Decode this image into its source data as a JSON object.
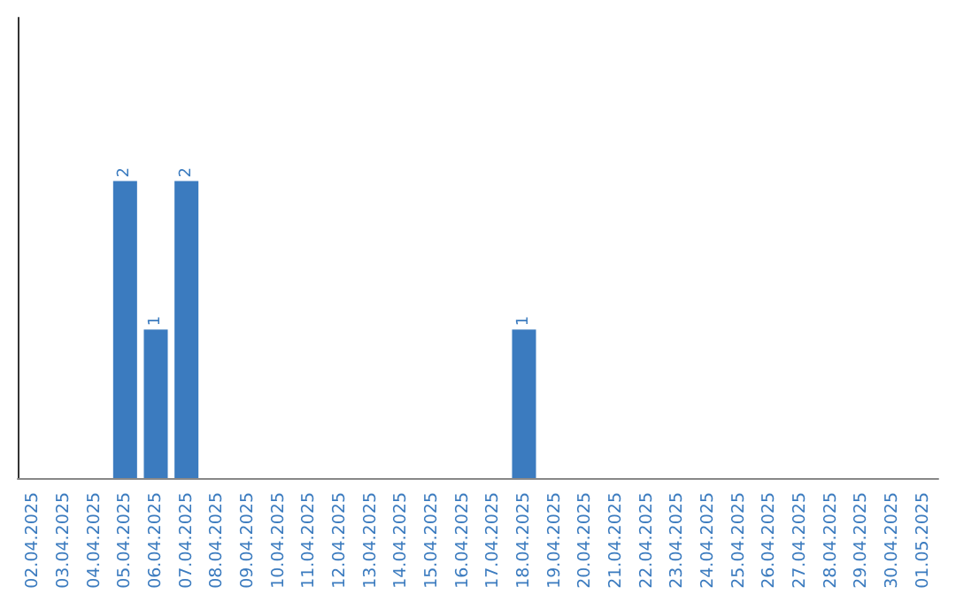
{
  "chart_data": {
    "type": "bar",
    "categories": [
      "02.04.2025",
      "03.04.2025",
      "04.04.2025",
      "05.04.2025",
      "06.04.2025",
      "07.04.2025",
      "08.04.2025",
      "09.04.2025",
      "10.04.2025",
      "11.04.2025",
      "12.04.2025",
      "13.04.2025",
      "14.04.2025",
      "15.04.2025",
      "16.04.2025",
      "17.04.2025",
      "18.04.2025",
      "19.04.2025",
      "20.04.2025",
      "21.04.2025",
      "22.04.2025",
      "23.04.2025",
      "24.04.2025",
      "25.04.2025",
      "26.04.2025",
      "27.04.2025",
      "28.04.2025",
      "29.04.2025",
      "30.04.2025",
      "01.05.2025"
    ],
    "values": [
      0,
      0,
      0,
      2,
      1,
      2,
      0,
      0,
      0,
      0,
      0,
      0,
      0,
      0,
      0,
      0,
      1,
      0,
      0,
      0,
      0,
      0,
      0,
      0,
      0,
      0,
      0,
      0,
      0,
      0
    ],
    "value_labels": [
      null,
      null,
      null,
      "2",
      "1",
      "2",
      null,
      null,
      null,
      null,
      null,
      null,
      null,
      null,
      null,
      null,
      "1",
      null,
      null,
      null,
      null,
      null,
      null,
      null,
      null,
      null,
      null,
      null,
      null,
      null
    ],
    "color": "#3b7bbf",
    "ylim": [
      0,
      3.1
    ],
    "tick_labels": "x"
  }
}
